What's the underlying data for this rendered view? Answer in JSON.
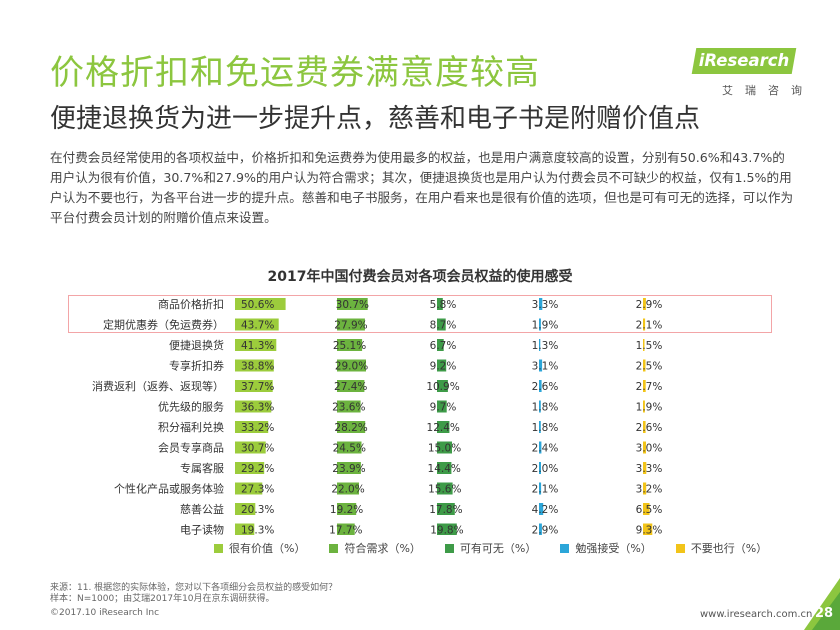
{
  "header": {
    "title": "价格折扣和免运费券满意度较高",
    "subtitle": "便捷退换货为进一步提升点，慈善和电子书是附赠价值点",
    "paragraph": "在付费会员经常使用的各项权益中，价格折扣和免运费券为使用最多的权益，也是用户满意度较高的设置，分别有50.6%和43.7%的用户认为很有价值，30.7%和27.9%的用户认为符合需求；其次，便捷退换货也是用户认为付费会员不可缺少的权益，仅有1.5%的用户认为不要也行，为各平台进一步的提升点。慈善和电子书服务，在用户看来也是很有价值的选项，但也是可有可无的选择，可以作为平台付费会员计划的附赠价值点来设置。"
  },
  "logo": {
    "brand": "iResearch",
    "cn": "艾瑞咨询"
  },
  "chart_data": {
    "type": "bar",
    "title": "2017年中国付费会员对各项会员权益的使用感受",
    "categories": [
      "商品价格折扣",
      "定期优惠券（免运费券）",
      "便捷退换货",
      "专享折扣券",
      "消费返利（返券、返现等）",
      "优先级的服务",
      "积分福利兑换",
      "会员专享商品",
      "专属客服",
      "个性化产品或服务体验",
      "慈善公益",
      "电子读物"
    ],
    "series": [
      {
        "name": "很有价值（%）",
        "color": "#9ccc3c",
        "values": [
          50.6,
          43.7,
          41.3,
          38.8,
          37.7,
          36.3,
          33.2,
          30.7,
          29.2,
          27.3,
          20.3,
          19.3
        ]
      },
      {
        "name": "符合需求（%）",
        "color": "#6cb33f",
        "values": [
          30.7,
          27.9,
          25.1,
          29.0,
          27.4,
          23.6,
          28.2,
          24.5,
          23.9,
          22.0,
          19.2,
          17.7
        ]
      },
      {
        "name": "可有可无（%）",
        "color": "#3e9b48",
        "values": [
          5.8,
          8.7,
          6.7,
          9.2,
          10.9,
          9.7,
          12.4,
          15.0,
          14.4,
          15.6,
          17.8,
          19.8
        ]
      },
      {
        "name": "勉强接受（%）",
        "color": "#2ca6d9",
        "values": [
          3.3,
          1.9,
          1.3,
          3.1,
          2.6,
          1.8,
          1.8,
          2.4,
          2.0,
          2.1,
          4.2,
          2.9
        ]
      },
      {
        "name": "不要也行（%）",
        "color": "#f2c419",
        "values": [
          2.9,
          2.1,
          1.5,
          2.5,
          2.7,
          1.9,
          2.6,
          3.0,
          3.3,
          3.2,
          6.5,
          9.3
        ]
      }
    ],
    "value_labels": [
      [
        "50.6%",
        "43.7%",
        "41.3%",
        "38.8%",
        "37.7%",
        "36.3%",
        "33.2%",
        "30.7%",
        "29.2%",
        "27.3%",
        "20.3%",
        "19.3%"
      ],
      [
        "30.7%",
        "27.9%",
        "25.1%",
        "29.0%",
        "27.4%",
        "23.6%",
        "28.2%",
        "24.5%",
        "23.9%",
        "22.0%",
        "19.2%",
        "17.7%"
      ],
      [
        "5.8%",
        "8.7%",
        "6.7%",
        "9.2%",
        "10.9%",
        "9.7%",
        "12.4%",
        "15.0%",
        "14.4%",
        "15.6%",
        "17.8%",
        "19.8%"
      ],
      [
        "3.3%",
        "1.9%",
        "1.3%",
        "3.1%",
        "2.6%",
        "1.8%",
        "1.8%",
        "2.4%",
        "2.0%",
        "2.1%",
        "4.2%",
        "2.9%"
      ],
      [
        "2.9%",
        "2.1%",
        "1.5%",
        "2.5%",
        "2.7%",
        "1.9%",
        "2.6%",
        "3.0%",
        "3.3%",
        "3.2%",
        "6.5%",
        "9.3%"
      ]
    ],
    "highlighted_categories": [
      "商品价格折扣",
      "定期优惠券（免运费券）"
    ],
    "legend_position": "bottom"
  },
  "footer": {
    "source_line1": "来源：11. 根据您的实际体验，您对以下各项细分会员权益的感受如何？",
    "source_line2": "样本：N=1000；由艾瑞2017年10月在京东调研获得。",
    "copyright": "©2017.10 iResearch Inc",
    "website": "www.iresearch.com.cn",
    "page": "28"
  },
  "colors": {
    "accent": "#8cc63f",
    "highlight_border": "#f3a5a7"
  }
}
